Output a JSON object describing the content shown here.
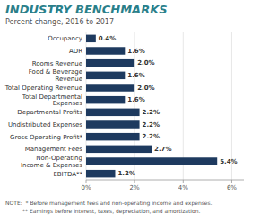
{
  "chart_data": {
    "type": "bar",
    "orientation": "horizontal",
    "title": "INDUSTRY BENCHMARKS",
    "subtitle": "Percent change, 2016 to 2017",
    "categories": [
      "EBITDA**",
      "Non-Operating\nIncome & Expenses",
      "Management Fees",
      "Gross Operating Profit*",
      "Undistributed Expenses",
      "Departmental Profits",
      "Total Departmental\nExpenses",
      "Total Operating Revenue",
      "Food & Beverage\nRevenue",
      "Rooms Revenue",
      "ADR",
      "Occupancy"
    ],
    "values": [
      1.2,
      5.4,
      2.7,
      2.2,
      2.2,
      2.2,
      1.6,
      2.0,
      1.6,
      2.0,
      1.6,
      0.4
    ],
    "value_labels": [
      "1.2%",
      "5.4%",
      "2.7%",
      "2.2%",
      "2.2%",
      "2.2%",
      "1.6%",
      "2.0%",
      "1.6%",
      "2.0%",
      "1.6%",
      "0.4%"
    ],
    "data_labels": true,
    "color": "#1e3a5f",
    "xlim": [
      0,
      6.5
    ],
    "xticks": [
      {
        "value": 0,
        "label": "0%"
      },
      {
        "value": 2,
        "label": "2%"
      },
      {
        "value": 4,
        "label": "4%"
      },
      {
        "value": 6,
        "label": "6%"
      }
    ],
    "grid": true,
    "annotations": [
      "NOTE:  * Before management fees and non-operating income and expenses.",
      "          ** Earnings before interest, taxes, depreciation, and amortization."
    ]
  }
}
